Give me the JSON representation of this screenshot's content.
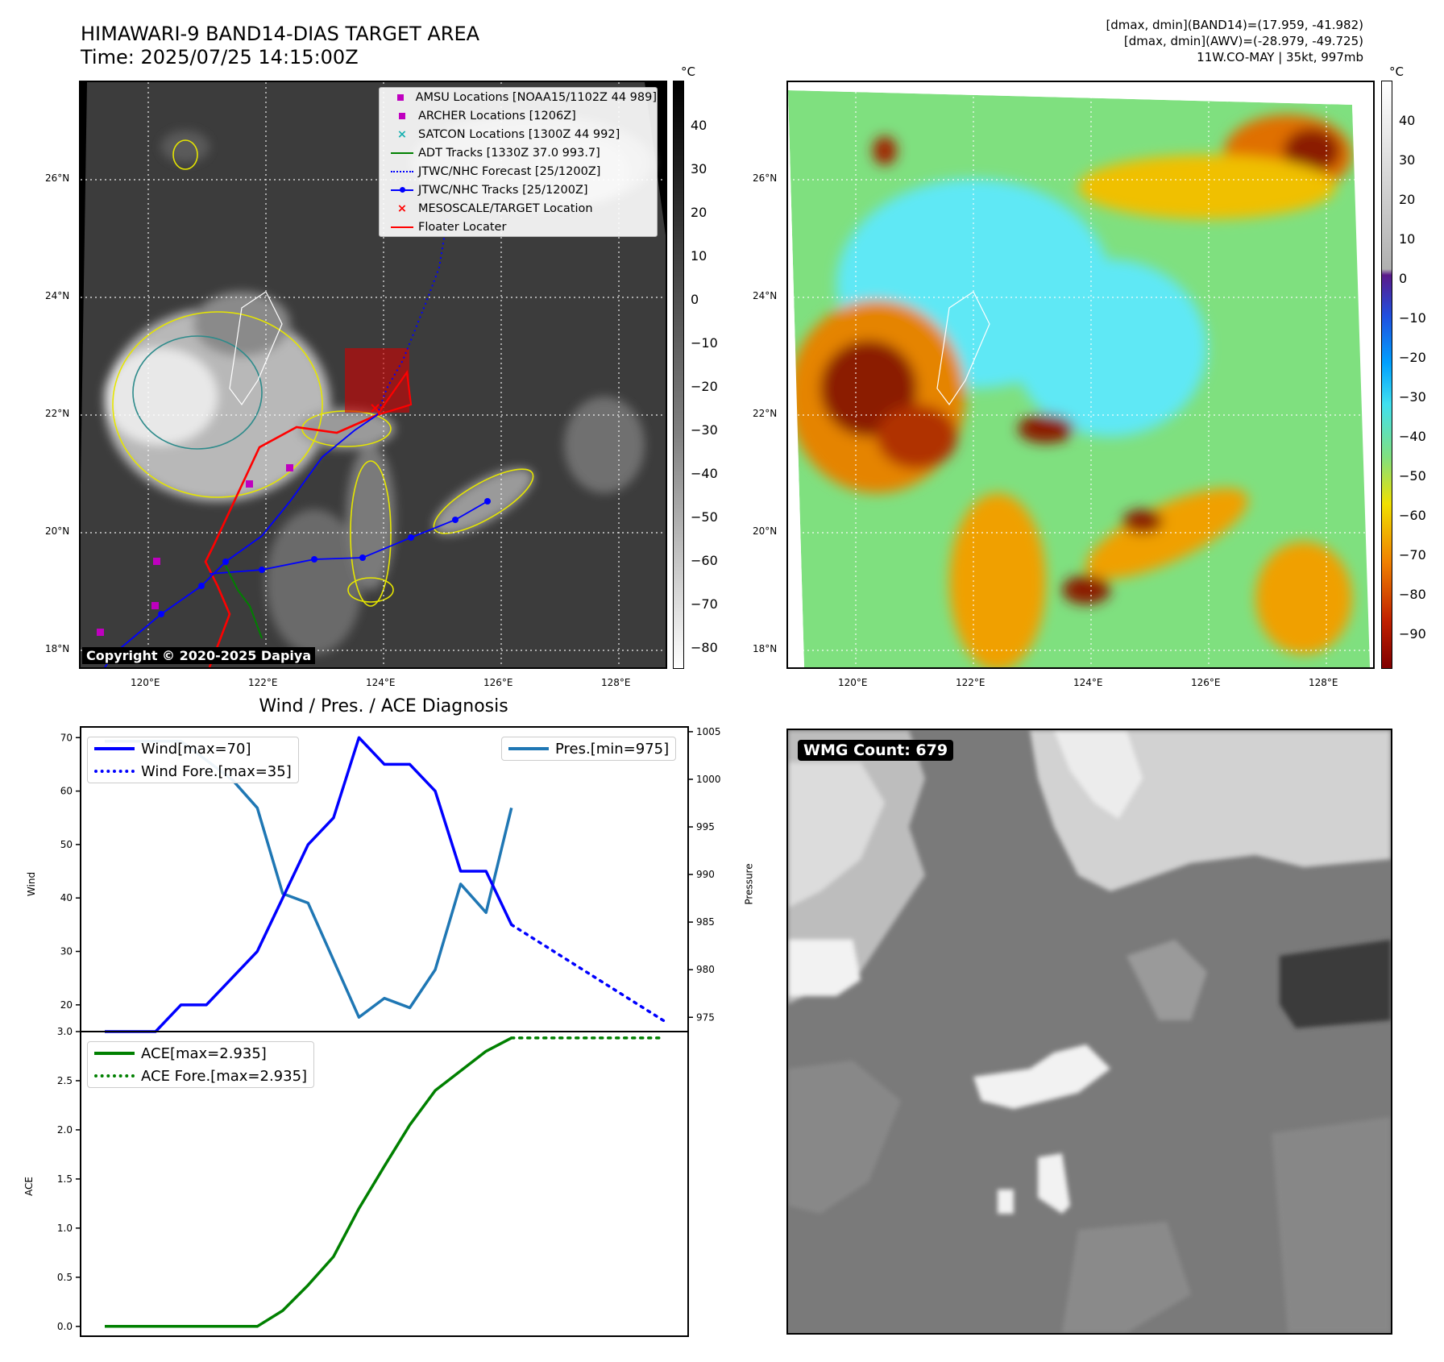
{
  "header": {
    "title": "HIMAWARI-9 BAND14-DIAS TARGET AREA",
    "time": "Time: 2025/07/25 14:15:00Z",
    "stats_line1": "[dmax, dmin](BAND14)=(17.959, -41.982)",
    "stats_line2": "[dmax, dmin](AWV)=(-28.979, -49.725)",
    "stats_line3": "11W.CO-MAY | 35kt, 997mb"
  },
  "map": {
    "lat_labels": [
      "26°N",
      "24°N",
      "22°N",
      "20°N",
      "18°N"
    ],
    "lon_labels": [
      "120°E",
      "122°E",
      "124°E",
      "126°E",
      "128°E"
    ],
    "copyright": "Copyright © 2020-2025 Dapiya",
    "legend": [
      {
        "label": "AMSU Locations [NOAA15/1102Z 44 989]",
        "symbol": "square",
        "color": "#bf00bf"
      },
      {
        "label": "ARCHER Locations [1206Z]",
        "symbol": "square",
        "color": "#bf00bf"
      },
      {
        "label": "SATCON Locations [1300Z 44 992]",
        "symbol": "x",
        "color": "#17b0b0"
      },
      {
        "label": "ADT Tracks [1330Z 37.0 993.7]",
        "symbol": "line",
        "color": "#008000"
      },
      {
        "label": "JTWC/NHC Forecast [25/1200Z]",
        "symbol": "dotted",
        "color": "#0000ff"
      },
      {
        "label": "JTWC/NHC Tracks [25/1200Z]",
        "symbol": "line-dot",
        "color": "#0000ff"
      },
      {
        "label": "MESOSCALE/TARGET Location",
        "symbol": "x",
        "color": "#ff0000"
      },
      {
        "label": "Floater Locater",
        "symbol": "line",
        "color": "#ff0000"
      }
    ]
  },
  "colorbar_left": {
    "unit": "°C",
    "ticks": [
      "40",
      "30",
      "20",
      "10",
      "0",
      "−10",
      "−20",
      "−30",
      "−40",
      "−50",
      "−60",
      "−70",
      "−80"
    ]
  },
  "colorbar_right": {
    "unit": "°C",
    "ticks": [
      "40",
      "30",
      "20",
      "10",
      "0",
      "−10",
      "−20",
      "−30",
      "−40",
      "−50",
      "−60",
      "−70",
      "−80",
      "−90"
    ]
  },
  "colors": {
    "wind": "#0000ff",
    "pressure": "#1f77b4",
    "ace": "#008000",
    "track_red": "#ff0000"
  },
  "diag": {
    "title": "Wind / Pres. / ACE Diagnosis",
    "ylabel_wind": "Wind",
    "ylabel_pres": "Pressure",
    "ylabel_ace": "ACE"
  },
  "wmg": {
    "label": "WMG Count: 679"
  },
  "chart_data": [
    {
      "type": "line",
      "title": "Wind / Pres. / ACE Diagnosis",
      "ylabel": "Wind",
      "ylim": [
        15,
        72
      ],
      "yticks": [
        20,
        30,
        40,
        50,
        60,
        70
      ],
      "series": [
        {
          "name": "Wind[max=70]",
          "x": [
            0,
            1,
            2,
            3,
            4,
            5,
            6,
            7,
            8,
            9,
            10,
            11,
            12,
            13,
            14,
            15,
            16
          ],
          "values": [
            15,
            15,
            15,
            20,
            20,
            25,
            30,
            40,
            50,
            55,
            70,
            65,
            65,
            60,
            45,
            45,
            35
          ]
        },
        {
          "name": "Wind Fore.[max=35]",
          "x": [
            16,
            17,
            18,
            19,
            20,
            21,
            22
          ],
          "values": [
            35,
            32,
            29,
            26,
            23,
            20,
            17
          ]
        }
      ]
    },
    {
      "type": "line",
      "ylabel": "Pressure",
      "ylim": [
        973.5,
        1005.5
      ],
      "yticks": [
        975,
        980,
        985,
        990,
        995,
        1000,
        1005
      ],
      "series": [
        {
          "name": "Pres.[min=975]",
          "x": [
            0,
            1,
            2,
            3,
            4,
            5,
            6,
            7,
            8,
            9,
            10,
            11,
            12,
            13,
            14,
            15,
            16
          ],
          "values": [
            1004,
            1004,
            1004,
            1004,
            1002,
            1000,
            997,
            988,
            987,
            981,
            975,
            977,
            976,
            980,
            989,
            986,
            997
          ]
        }
      ]
    },
    {
      "type": "line",
      "ylabel": "ACE",
      "ylim": [
        -0.1,
        3.0
      ],
      "yticks": [
        0.0,
        0.5,
        1.0,
        1.5,
        2.0,
        2.5,
        3.0
      ],
      "series": [
        {
          "name": "ACE[max=2.935]",
          "x": [
            0,
            1,
            2,
            3,
            4,
            5,
            6,
            7,
            8,
            9,
            10,
            11,
            12,
            13,
            14,
            15,
            16
          ],
          "values": [
            0,
            0,
            0,
            0,
            0,
            0,
            0,
            0.16,
            0.42,
            0.71,
            1.2,
            1.63,
            2.05,
            2.4,
            2.6,
            2.8,
            2.935
          ]
        },
        {
          "name": "ACE Fore.[max=2.935]",
          "x": [
            16,
            17,
            18,
            19,
            20,
            21,
            22
          ],
          "values": [
            2.935,
            2.935,
            2.935,
            2.935,
            2.935,
            2.935,
            2.935
          ]
        }
      ]
    }
  ]
}
